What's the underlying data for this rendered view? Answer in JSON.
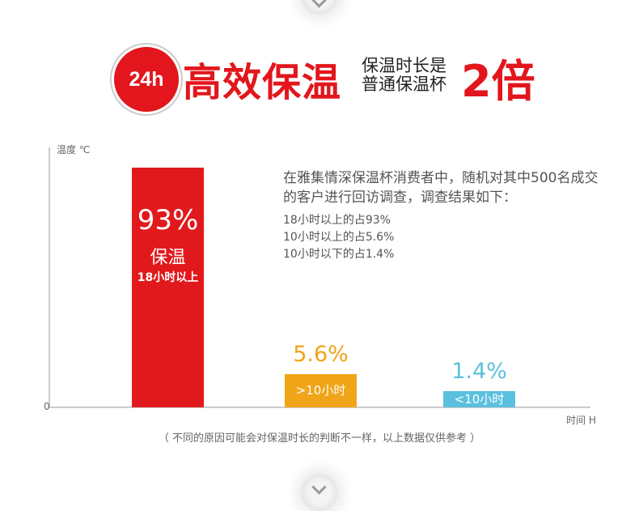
{
  "header": {
    "badge": "24h",
    "title": "高效保温",
    "subtitle_line1": "保温时长是",
    "subtitle_line2": "普通保温杯",
    "multiplier": "2倍"
  },
  "chart_data": {
    "type": "bar",
    "ylabel": "温度 ℃",
    "xlabel": "时间 H",
    "y_origin_label": "0",
    "categories": [
      ">18小时",
      ">10小时",
      "<10小时"
    ],
    "values": [
      93,
      5.6,
      1.4
    ],
    "value_labels": [
      "93%",
      "5.6%",
      "1.4%"
    ],
    "bar_texts": [
      {
        "main": "保温",
        "sub": "18小时以上"
      },
      {
        "main": ">10小时"
      },
      {
        "main": "<10小时"
      }
    ],
    "colors": [
      "#e2191c",
      "#f0a417",
      "#5bc0de"
    ]
  },
  "survey": {
    "intro": "在雅集情深保温杯消费者中，随机对其中500名成交的客户进行回访调查，调查结果如下：",
    "lines": [
      "18小时以上的占93%",
      "10小时以上的占5.6%",
      "10小时以下的占1.4%"
    ]
  },
  "footnote": "（ 不同的原因可能会对保温时长的判断不一样，以上数据仅供参考 ）"
}
